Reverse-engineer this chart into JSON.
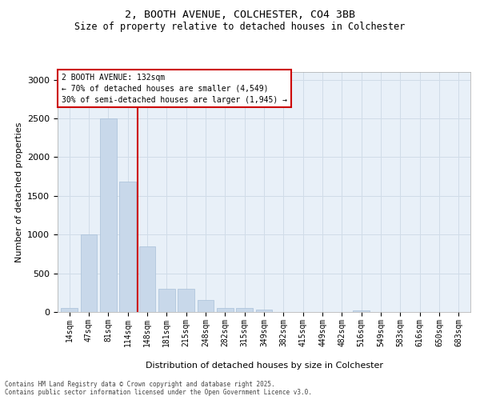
{
  "title_line1": "2, BOOTH AVENUE, COLCHESTER, CO4 3BB",
  "title_line2": "Size of property relative to detached houses in Colchester",
  "xlabel": "Distribution of detached houses by size in Colchester",
  "ylabel": "Number of detached properties",
  "bar_heights": [
    50,
    1000,
    2500,
    1680,
    850,
    300,
    300,
    150,
    55,
    55,
    30,
    5,
    5,
    0,
    0,
    20,
    0,
    0,
    0,
    0,
    0
  ],
  "categories": [
    "14sqm",
    "47sqm",
    "81sqm",
    "114sqm",
    "148sqm",
    "181sqm",
    "215sqm",
    "248sqm",
    "282sqm",
    "315sqm",
    "349sqm",
    "382sqm",
    "415sqm",
    "449sqm",
    "482sqm",
    "516sqm",
    "549sqm",
    "583sqm",
    "616sqm",
    "650sqm",
    "683sqm"
  ],
  "bar_color": "#c8d8ea",
  "bar_edge_color": "#a8c0d8",
  "vline_color": "#cc0000",
  "vline_x": 3.5,
  "annotation_text": "2 BOOTH AVENUE: 132sqm\n← 70% of detached houses are smaller (4,549)\n30% of semi-detached houses are larger (1,945) →",
  "annotation_box_facecolor": "#ffffff",
  "annotation_box_edgecolor": "#cc0000",
  "grid_color": "#d0dce8",
  "background_color": "#e8f0f8",
  "ylim": [
    0,
    3100
  ],
  "yticks": [
    0,
    500,
    1000,
    1500,
    2000,
    2500,
    3000
  ],
  "footer_line1": "Contains HM Land Registry data © Crown copyright and database right 2025.",
  "footer_line2": "Contains public sector information licensed under the Open Government Licence v3.0."
}
